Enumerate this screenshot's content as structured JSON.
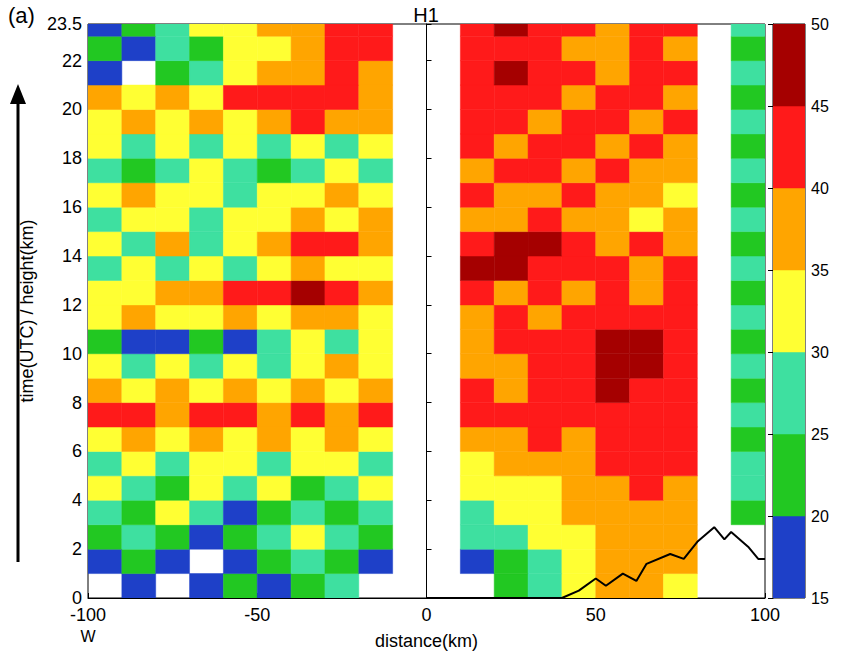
{
  "chart_data": {
    "type": "heatmap",
    "title": "H1",
    "panel_label": "(a)",
    "x_label": "distance(km)",
    "x_annotation": "W",
    "y_label": "time(UTC) / height(km)",
    "xlim": [
      -100,
      100
    ],
    "xticks": [
      -100,
      -50,
      0,
      50,
      100
    ],
    "ylim": [
      0,
      23.5
    ],
    "yticks": [
      0,
      2,
      4,
      6,
      8,
      10,
      12,
      14,
      16,
      18,
      20,
      22
    ],
    "x_bins": [
      -100,
      -90,
      -80,
      -70,
      -60,
      -50,
      -40,
      -30,
      -20,
      -10,
      0,
      10,
      20,
      30,
      40,
      50,
      60,
      70,
      80,
      90,
      100
    ],
    "y_bins": [
      0,
      1,
      2,
      3,
      4,
      5,
      6,
      7,
      8,
      9,
      10,
      11,
      12,
      13,
      14,
      15,
      16,
      17,
      18,
      19,
      20,
      21,
      22,
      23,
      24
    ],
    "cells": [
      [
        null,
        17,
        null,
        17,
        22,
        17,
        22,
        27,
        null,
        null,
        null,
        null,
        22,
        27,
        32,
        37,
        37,
        32,
        null,
        null
      ],
      [
        17,
        22,
        17,
        null,
        17,
        22,
        27,
        22,
        17,
        null,
        null,
        17,
        22,
        27,
        32,
        37,
        37,
        37,
        null,
        null
      ],
      [
        22,
        27,
        22,
        17,
        22,
        27,
        32,
        27,
        22,
        null,
        null,
        27,
        27,
        32,
        32,
        37,
        37,
        37,
        null,
        null
      ],
      [
        27,
        22,
        32,
        27,
        17,
        22,
        27,
        22,
        27,
        null,
        null,
        27,
        32,
        32,
        37,
        37,
        37,
        37,
        null,
        22
      ],
      [
        32,
        27,
        22,
        32,
        27,
        32,
        22,
        27,
        32,
        null,
        null,
        32,
        32,
        32,
        37,
        37,
        42,
        37,
        null,
        27
      ],
      [
        27,
        32,
        27,
        32,
        32,
        27,
        32,
        32,
        27,
        null,
        null,
        32,
        37,
        37,
        37,
        42,
        42,
        42,
        null,
        27
      ],
      [
        32,
        37,
        32,
        37,
        32,
        37,
        32,
        37,
        32,
        null,
        null,
        37,
        37,
        42,
        37,
        42,
        42,
        42,
        null,
        22
      ],
      [
        42,
        42,
        37,
        42,
        42,
        37,
        42,
        37,
        42,
        null,
        null,
        42,
        42,
        42,
        42,
        42,
        42,
        42,
        null,
        27
      ],
      [
        37,
        32,
        37,
        32,
        37,
        32,
        37,
        32,
        37,
        null,
        null,
        42,
        37,
        42,
        42,
        47,
        42,
        42,
        null,
        22
      ],
      [
        32,
        27,
        32,
        27,
        32,
        27,
        32,
        37,
        32,
        null,
        null,
        37,
        37,
        42,
        42,
        47,
        47,
        42,
        null,
        27
      ],
      [
        22,
        17,
        17,
        22,
        17,
        27,
        32,
        27,
        32,
        null,
        null,
        37,
        42,
        42,
        42,
        47,
        47,
        42,
        null,
        22
      ],
      [
        32,
        37,
        32,
        32,
        37,
        32,
        37,
        37,
        32,
        null,
        null,
        37,
        42,
        37,
        42,
        42,
        42,
        42,
        null,
        27
      ],
      [
        32,
        32,
        37,
        37,
        42,
        42,
        47,
        42,
        37,
        null,
        null,
        42,
        37,
        42,
        37,
        42,
        37,
        42,
        null,
        22
      ],
      [
        27,
        32,
        27,
        32,
        27,
        32,
        37,
        32,
        32,
        null,
        null,
        47,
        47,
        42,
        42,
        42,
        37,
        42,
        null,
        27
      ],
      [
        32,
        27,
        37,
        27,
        32,
        37,
        42,
        42,
        37,
        null,
        null,
        42,
        47,
        47,
        42,
        37,
        42,
        37,
        null,
        22
      ],
      [
        27,
        32,
        32,
        27,
        32,
        32,
        37,
        32,
        37,
        null,
        null,
        37,
        37,
        42,
        37,
        37,
        32,
        37,
        null,
        27
      ],
      [
        32,
        37,
        32,
        32,
        27,
        32,
        32,
        37,
        32,
        null,
        null,
        42,
        37,
        37,
        42,
        37,
        37,
        32,
        null,
        22
      ],
      [
        27,
        22,
        27,
        32,
        27,
        22,
        27,
        32,
        27,
        null,
        null,
        37,
        42,
        42,
        37,
        42,
        37,
        37,
        null,
        27
      ],
      [
        32,
        27,
        32,
        27,
        32,
        27,
        32,
        27,
        32,
        null,
        null,
        42,
        37,
        42,
        42,
        37,
        42,
        37,
        null,
        22
      ],
      [
        32,
        37,
        32,
        37,
        32,
        37,
        42,
        37,
        37,
        null,
        null,
        42,
        42,
        37,
        42,
        42,
        37,
        42,
        null,
        27
      ],
      [
        37,
        32,
        37,
        32,
        42,
        42,
        42,
        42,
        37,
        null,
        null,
        42,
        42,
        42,
        37,
        42,
        42,
        37,
        null,
        22
      ],
      [
        17,
        null,
        22,
        27,
        32,
        37,
        37,
        42,
        37,
        null,
        null,
        42,
        47,
        42,
        42,
        37,
        42,
        42,
        null,
        27
      ],
      [
        22,
        17,
        27,
        22,
        32,
        32,
        37,
        42,
        42,
        null,
        null,
        42,
        42,
        42,
        37,
        37,
        42,
        37,
        null,
        22
      ],
      [
        17,
        22,
        27,
        32,
        32,
        37,
        37,
        42,
        42,
        null,
        null,
        42,
        47,
        42,
        42,
        37,
        42,
        42,
        null,
        27
      ]
    ],
    "colorbar": {
      "range": [
        15,
        50
      ],
      "ticks": [
        15,
        20,
        25,
        30,
        35,
        40,
        45,
        50
      ],
      "colors": [
        "#1e40c8",
        "#22c822",
        "#3ee0a0",
        "#ffff33",
        "#ffa500",
        "#ff1a1a",
        "#a50000"
      ]
    },
    "terrain": {
      "color": "#000000",
      "x": [
        0,
        10,
        20,
        30,
        40,
        45,
        50,
        53,
        58,
        62,
        65,
        72,
        76,
        80,
        85,
        88,
        90,
        95,
        98,
        100
      ],
      "y": [
        0,
        0,
        0,
        0,
        0,
        0.3,
        0.8,
        0.5,
        1.0,
        0.7,
        1.4,
        1.8,
        1.6,
        2.3,
        2.9,
        2.4,
        2.7,
        2.1,
        1.6,
        1.6
      ]
    }
  }
}
